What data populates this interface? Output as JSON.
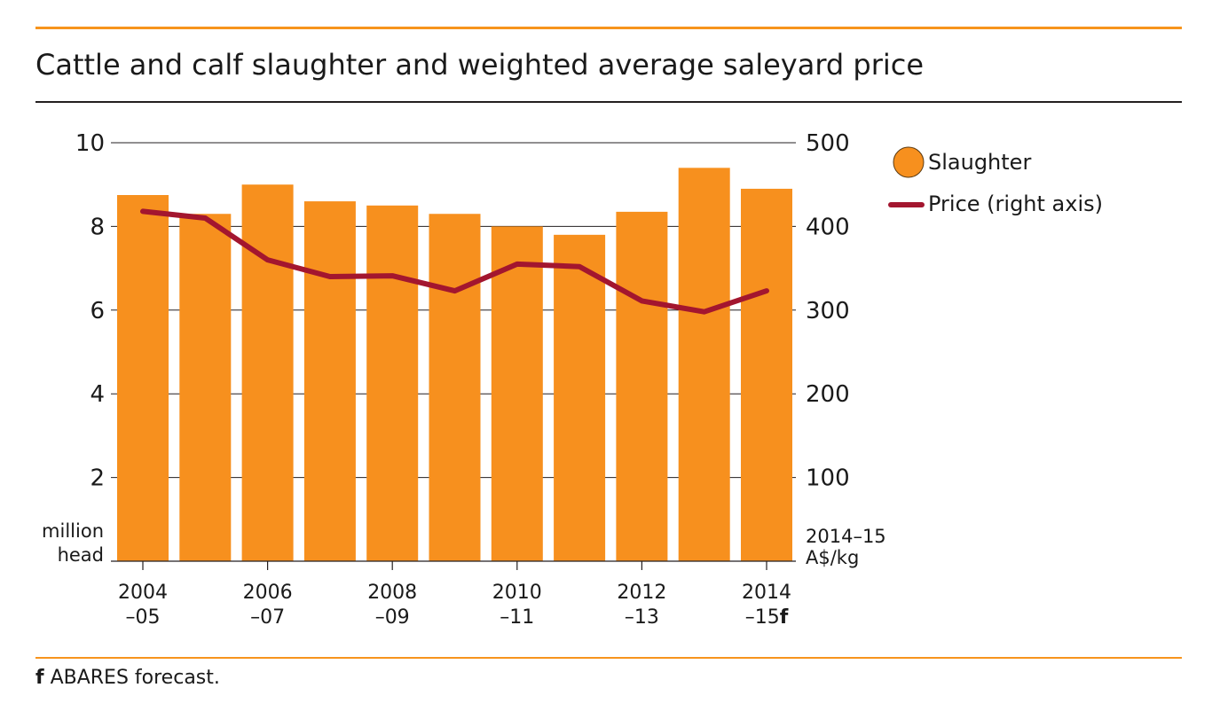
{
  "title": "Cattle and calf slaughter and weighted average saleyard price",
  "footnote": {
    "marker": "f",
    "text": "ABARES forecast."
  },
  "colors": {
    "rule": "#f7941d",
    "bar": "#f7901e",
    "line": "#a3162f",
    "grid": "#231f20"
  },
  "chart_data": {
    "type": "bar",
    "categories": [
      "2004–05",
      "2005–06",
      "2006–07",
      "2007–08",
      "2008–09",
      "2009–10",
      "2010–11",
      "2011–12",
      "2012–13",
      "2013–14",
      "2014–15f"
    ],
    "tick_labels": [
      {
        "line1": "2004",
        "line2": "–05",
        "suffix": ""
      },
      {
        "line1": "2006",
        "line2": "–07",
        "suffix": ""
      },
      {
        "line1": "2008",
        "line2": "–09",
        "suffix": ""
      },
      {
        "line1": "2010",
        "line2": "–11",
        "suffix": ""
      },
      {
        "line1": "2012",
        "line2": "–13",
        "suffix": ""
      },
      {
        "line1": "2014",
        "line2": "–15",
        "suffix": "f"
      }
    ],
    "tick_every": 2,
    "series": [
      {
        "name": "Slaughter",
        "type": "bar",
        "axis": "left",
        "values": [
          8.75,
          8.3,
          9.0,
          8.6,
          8.5,
          8.3,
          8.0,
          7.8,
          8.35,
          9.4,
          8.9
        ]
      },
      {
        "name": "Price (right axis)",
        "type": "line",
        "axis": "right",
        "values": [
          418,
          410,
          360,
          340,
          341,
          323,
          355,
          352,
          311,
          298,
          323
        ]
      }
    ],
    "y_left": {
      "label_line1": "million",
      "label_line2": "head",
      "ticks": [
        2,
        4,
        6,
        8,
        10
      ],
      "ylim": [
        0,
        10
      ]
    },
    "y_right": {
      "label_line1": "2014–15",
      "label_line2": "A$/kg",
      "ticks": [
        100,
        200,
        300,
        400,
        500
      ],
      "ylim": [
        0,
        500
      ]
    },
    "grid": true,
    "legend_position": "right"
  }
}
